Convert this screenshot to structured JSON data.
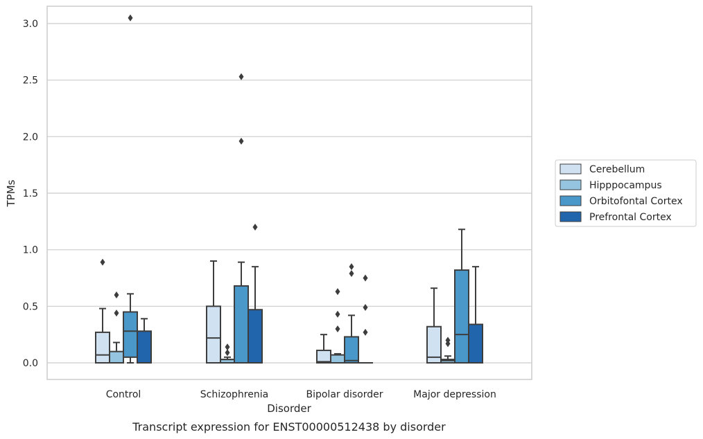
{
  "chart_data": {
    "type": "box",
    "title": "",
    "caption": "Transcript expression for ENST00000512438 by disorder",
    "xlabel": "Disorder",
    "ylabel": "TPMs",
    "ylim": [
      -0.15,
      3.2
    ],
    "yticks": [
      "0.0",
      "0.5",
      "1.0",
      "1.5",
      "2.0",
      "2.5",
      "3.0"
    ],
    "grid": true,
    "legend_position": "right",
    "categories": [
      "Control",
      "Schizophrenia",
      "Bipolar disorder",
      "Major depression"
    ],
    "series": [
      {
        "name": "Cerebellum",
        "color": "#d0e1f2",
        "boxes": [
          {
            "whislo": 0.0,
            "q1": 0.0,
            "med": 0.07,
            "q3": 0.27,
            "whishi": 0.48,
            "fliers": [
              0.89
            ]
          },
          {
            "whislo": 0.0,
            "q1": 0.0,
            "med": 0.22,
            "q3": 0.5,
            "whishi": 0.9,
            "fliers": []
          },
          {
            "whislo": 0.0,
            "q1": 0.0,
            "med": 0.01,
            "q3": 0.11,
            "whishi": 0.25,
            "fliers": []
          },
          {
            "whislo": 0.0,
            "q1": 0.0,
            "med": 0.05,
            "q3": 0.32,
            "whishi": 0.66,
            "fliers": []
          }
        ]
      },
      {
        "name": "Hipppocampus",
        "color": "#94c4df",
        "boxes": [
          {
            "whislo": 0.0,
            "q1": 0.0,
            "med": 0.0,
            "q3": 0.1,
            "whishi": 0.18,
            "fliers": [
              0.44,
              0.6
            ]
          },
          {
            "whislo": 0.0,
            "q1": 0.0,
            "med": 0.03,
            "q3": 0.03,
            "whishi": 0.05,
            "fliers": [
              0.09,
              0.14
            ]
          },
          {
            "whislo": 0.0,
            "q1": 0.0,
            "med": 0.0,
            "q3": 0.07,
            "whishi": 0.08,
            "fliers": [
              0.3,
              0.43,
              0.63
            ]
          },
          {
            "whislo": 0.0,
            "q1": 0.0,
            "med": 0.02,
            "q3": 0.03,
            "whishi": 0.06,
            "fliers": [
              0.17,
              0.2
            ]
          }
        ]
      },
      {
        "name": "Orbitofontal Cortex",
        "color": "#4a98c9",
        "boxes": [
          {
            "whislo": 0.0,
            "q1": 0.05,
            "med": 0.28,
            "q3": 0.45,
            "whishi": 0.61,
            "fliers": [
              3.05
            ]
          },
          {
            "whislo": 0.0,
            "q1": 0.0,
            "med": 0.0,
            "q3": 0.68,
            "whishi": 0.89,
            "fliers": [
              1.96,
              2.53
            ]
          },
          {
            "whislo": 0.0,
            "q1": 0.0,
            "med": 0.02,
            "q3": 0.23,
            "whishi": 0.42,
            "fliers": [
              0.79,
              0.85
            ]
          },
          {
            "whislo": 0.0,
            "q1": 0.0,
            "med": 0.25,
            "q3": 0.82,
            "whishi": 1.18,
            "fliers": []
          }
        ]
      },
      {
        "name": "Prefrontal Cortex",
        "color": "#2166ac",
        "boxes": [
          {
            "whislo": 0.0,
            "q1": 0.0,
            "med": 0.0,
            "q3": 0.28,
            "whishi": 0.39,
            "fliers": []
          },
          {
            "whislo": 0.0,
            "q1": 0.0,
            "med": 0.0,
            "q3": 0.47,
            "whishi": 0.85,
            "fliers": [
              1.2
            ]
          },
          {
            "whislo": 0.0,
            "q1": 0.0,
            "med": 0.0,
            "q3": 0.0,
            "whishi": 0.0,
            "fliers": [
              0.27,
              0.49,
              0.75
            ]
          },
          {
            "whislo": 0.0,
            "q1": 0.0,
            "med": 0.0,
            "q3": 0.34,
            "whishi": 0.85,
            "fliers": []
          }
        ]
      }
    ]
  }
}
